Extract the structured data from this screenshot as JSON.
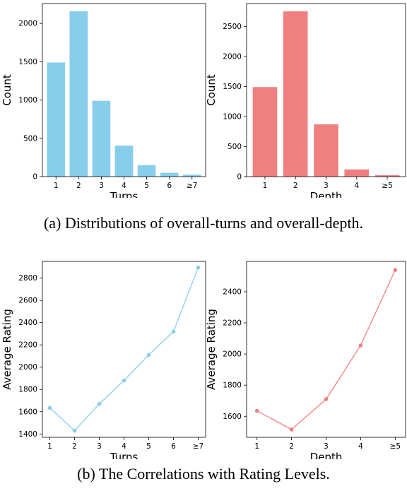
{
  "captions": {
    "a": "(a) Distributions of overall-turns and overall-depth.",
    "b": "(b) The Correlations with Rating Levels."
  },
  "chart_data": [
    {
      "type": "bar",
      "categories": [
        "1",
        "2",
        "3",
        "4",
        "5",
        "6",
        "≥7"
      ],
      "values": [
        1490,
        2160,
        990,
        405,
        150,
        50,
        25
      ],
      "xlabel": "Turns",
      "ylabel": "Count",
      "ylim": [
        0,
        2260
      ],
      "yticks": [
        0,
        500,
        1000,
        1500,
        2000
      ],
      "color": "#87CEEB"
    },
    {
      "type": "bar",
      "categories": [
        "1",
        "2",
        "3",
        "4",
        "≥5"
      ],
      "values": [
        1490,
        2750,
        870,
        120,
        25
      ],
      "xlabel": "Depth",
      "ylabel": "Count",
      "ylim": [
        0,
        2880
      ],
      "yticks": [
        0,
        500,
        1000,
        1500,
        2000,
        2500
      ],
      "color": "#F08080"
    },
    {
      "type": "line",
      "categories": [
        "1",
        "2",
        "3",
        "4",
        "5",
        "6",
        "≥7"
      ],
      "values": [
        1635,
        1430,
        1670,
        1880,
        2110,
        2320,
        2895
      ],
      "xlabel": "Turns",
      "ylabel": "Average Rating",
      "ylim": [
        1370,
        2950
      ],
      "yticks": [
        1400,
        1600,
        1800,
        2000,
        2200,
        2400,
        2600,
        2800
      ],
      "color": "#87CEEB"
    },
    {
      "type": "line",
      "categories": [
        "1",
        "2",
        "3",
        "4",
        "≥5"
      ],
      "values": [
        1635,
        1515,
        1710,
        2055,
        2540
      ],
      "xlabel": "Depth",
      "ylabel": "Average Rating",
      "ylim": [
        1465,
        2595
      ],
      "yticks": [
        1600,
        1800,
        2000,
        2200,
        2400
      ],
      "color": "#F08080"
    }
  ]
}
